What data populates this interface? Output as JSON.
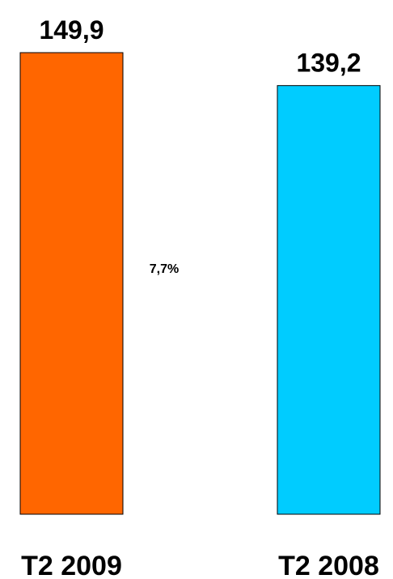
{
  "chart_data": {
    "type": "bar",
    "categories": [
      "T2 2009",
      "T2 2008"
    ],
    "values": [
      149.9,
      139.2
    ],
    "value_labels": [
      "149,9",
      "139,2"
    ],
    "colors": [
      "#ff6600",
      "#00ccff"
    ],
    "annotation": "7,7%",
    "title": "",
    "xlabel": "",
    "ylabel": "",
    "ylim": [
      0,
      149.9
    ],
    "grid": false,
    "legend": "none"
  }
}
